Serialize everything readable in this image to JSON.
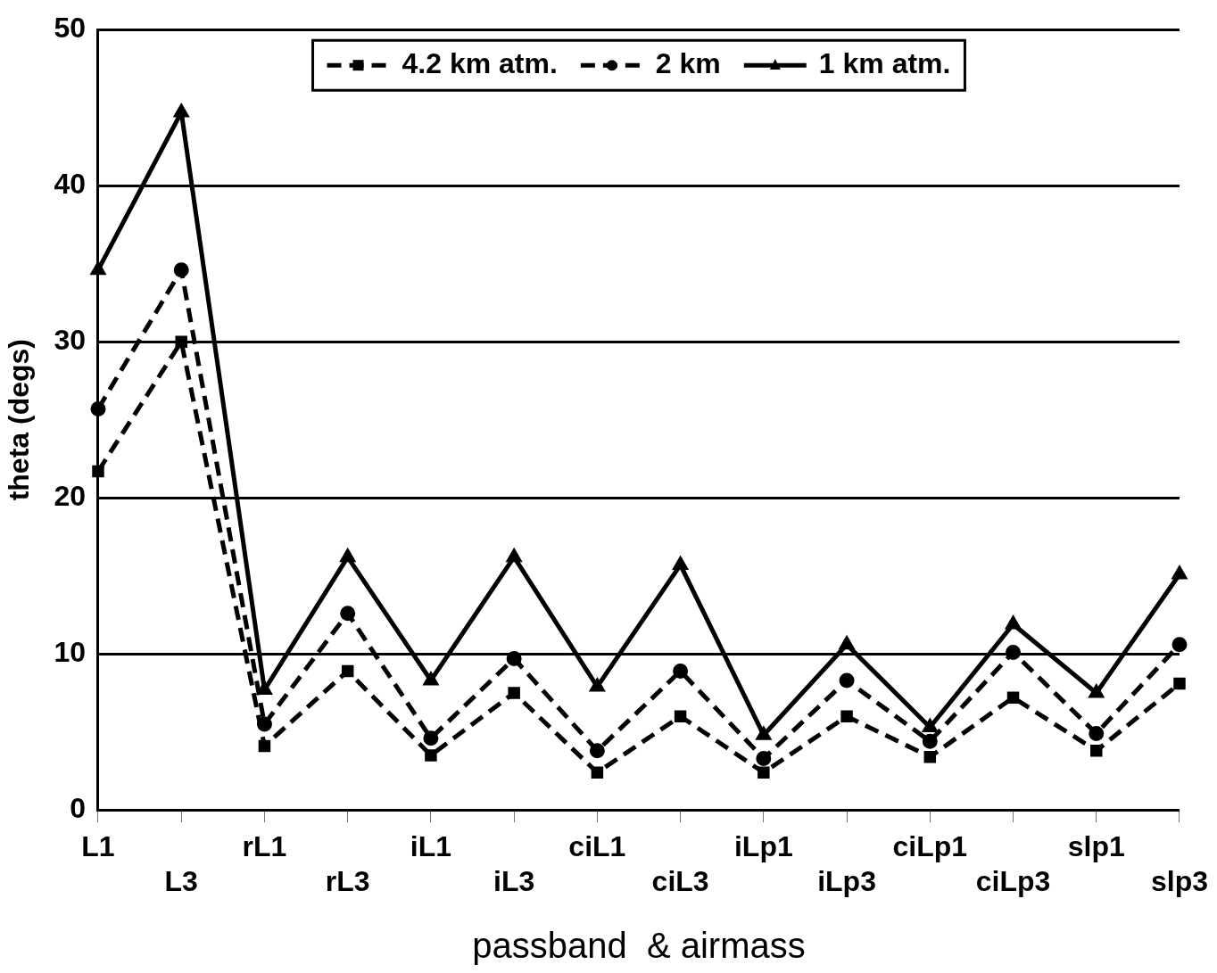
{
  "chart_data": {
    "type": "line",
    "xlabel": "passband  & airmass",
    "ylabel": "theta (degs)",
    "categories": [
      "L1",
      "L3",
      "rL1",
      "rL3",
      "iL1",
      "iL3",
      "ciL1",
      "ciL3",
      "iLp1",
      "iLp3",
      "ciLp1",
      "ciLp3",
      "slp1",
      "slp3"
    ],
    "series": [
      {
        "name": "4.2 km atm.",
        "color": "#000000",
        "marker": "square",
        "line_style": "dashed",
        "values": [
          21.7,
          30.0,
          4.1,
          8.9,
          3.5,
          7.5,
          2.4,
          6.0,
          2.4,
          6.0,
          3.4,
          7.2,
          3.8,
          8.1
        ]
      },
      {
        "name": "2 km",
        "color": "#000000",
        "marker": "circle",
        "line_style": "dashed",
        "values": [
          25.7,
          34.6,
          5.5,
          12.6,
          4.6,
          9.7,
          3.8,
          8.9,
          3.3,
          8.3,
          4.4,
          10.1,
          4.9,
          10.6
        ]
      },
      {
        "name": "1 km atm.",
        "color": "#000000",
        "marker": "triangle",
        "line_style": "solid",
        "values": [
          34.6,
          44.7,
          7.7,
          16.2,
          8.3,
          16.2,
          7.9,
          15.7,
          4.8,
          10.6,
          5.3,
          11.9,
          7.5,
          15.1
        ]
      }
    ],
    "ylim": [
      0,
      50
    ],
    "yticks": [
      0,
      10,
      20,
      30,
      40,
      50
    ],
    "grid": "y",
    "legend": "top"
  }
}
